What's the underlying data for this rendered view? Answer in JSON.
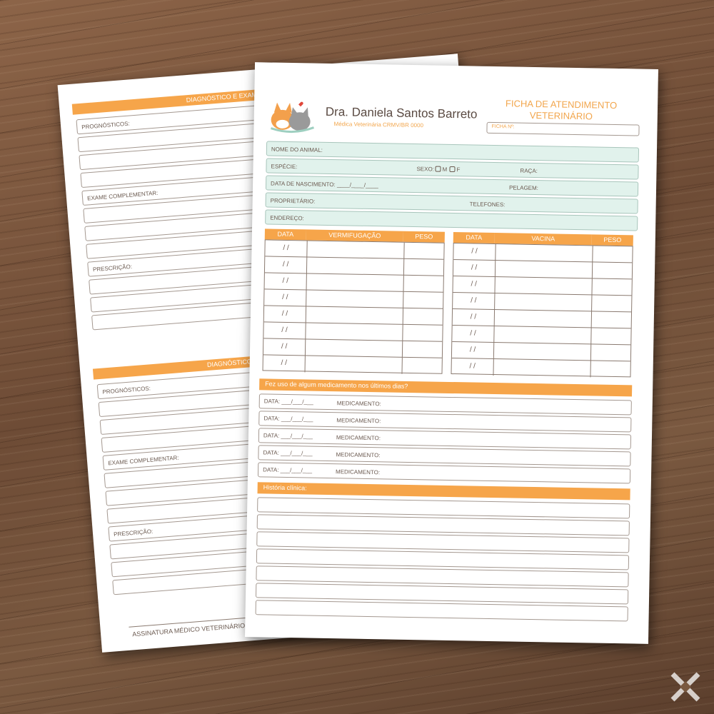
{
  "back_sheet": {
    "blocks": [
      {
        "header": "DIAGNÓSTICO E EXAM",
        "fields": [
          "PROGNÓSTICOS:",
          "EXAME COMPLEMENTAR:",
          "PRESCRIÇÃO:"
        ]
      },
      {
        "header": "DIAGNÓSTICO",
        "fields": [
          "PROGNÓSTICOS:",
          "EXAME COMPLEMENTAR:",
          "PRESCRIÇÃO:"
        ]
      }
    ],
    "signature": "ASSINATURA MÉDICO VETERINÁRIO"
  },
  "front_sheet": {
    "doctor_name": "Dra. Daniela Santos Barreto",
    "doctor_subtitle": "Médica Veterinária CRMV/BR 0000",
    "title": "FICHA DE ATENDIMENTO VETERINÁRIO",
    "ficha_label": "FICHA Nº:",
    "fields": [
      [
        "NOME DO ANIMAL:"
      ],
      [
        "ESPÉCIE:",
        "SEXO:",
        "RAÇA:"
      ],
      [
        "DATA DE NASCIMENTO: ____/____/____",
        "PELAGEM:"
      ],
      [
        "PROPRIETÁRIO:",
        "TELEFONES:"
      ],
      [
        "ENDEREÇO:"
      ]
    ],
    "sex_options": [
      "M",
      "F"
    ],
    "tables": [
      {
        "headers": [
          "DATA",
          "VERMIFUGAÇÃO",
          "PESO"
        ]
      },
      {
        "headers": [
          "DATA",
          "VACINA",
          "PESO"
        ]
      }
    ],
    "date_placeholder": "/     /",
    "medication_title": "Fez uso de algum medicamento nos últimos dias?",
    "medication_date_label": "DATA: ___/___/___",
    "medication_label": "MEDICAMENTO:",
    "history_title": "História clínica:"
  }
}
